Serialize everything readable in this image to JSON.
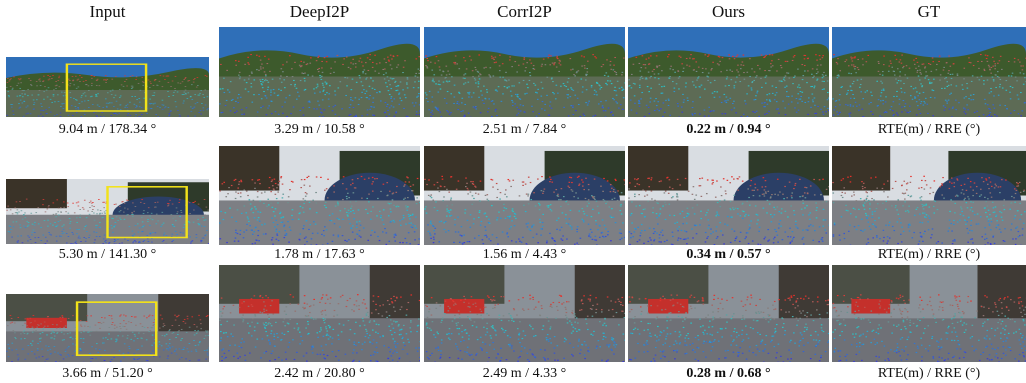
{
  "columns": [
    "Input",
    "DeepI2P",
    "CorrI2P",
    "Ours",
    "GT"
  ],
  "rows": [
    {
      "input_caption": "9.04 m / 178.34 °",
      "captions": [
        "3.29 m / 10.58 °",
        "2.51 m / 7.84 °",
        "0.22 m / 0.94 °",
        "RTE(m) / RRE (°)"
      ],
      "scene": "road-hills",
      "sky": "#2f6fb8",
      "ground": "#5d6b55"
    },
    {
      "input_caption": "5.30 m / 141.30 °",
      "captions": [
        "1.78 m / 17.63 °",
        "1.56 m / 4.43 °",
        "0.34 m / 0.57 °",
        "RTE(m) / RRE (°)"
      ],
      "scene": "street-cars",
      "sky": "#d9dde2",
      "ground": "#7d7f84"
    },
    {
      "input_caption": "3.66 m / 51.20 °",
      "captions": [
        "2.42 m / 20.80 °",
        "2.49 m / 4.33 °",
        "0.28 m / 0.68 °",
        "RTE(m) / RRE (°)"
      ],
      "scene": "residential",
      "sky": "#8a9198",
      "ground": "#6f7177"
    }
  ],
  "colors": {
    "highlight_box": "#f2e21a",
    "point_near": "#3b3bd6",
    "point_mid": "#27c7c9",
    "point_far": "#e8302a"
  }
}
